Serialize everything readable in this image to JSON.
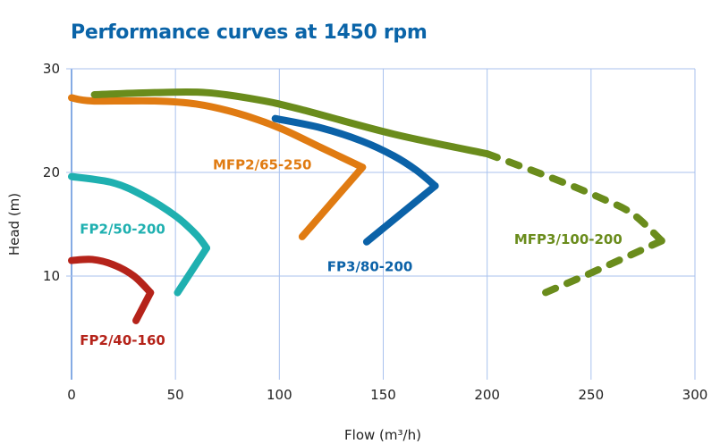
{
  "chart_data": {
    "type": "line",
    "title": "Performance curves at 1450 rpm",
    "xlabel": "Flow (m³/h)",
    "ylabel": "Head (m)",
    "xlim": [
      0,
      300
    ],
    "ylim": [
      0,
      30
    ],
    "xticks": [
      "0",
      "50",
      "100",
      "150",
      "200",
      "250",
      "300"
    ],
    "yticks": [
      "10",
      "20",
      "30"
    ],
    "grid": true,
    "series": [
      {
        "name": "FP2/40-160",
        "color": "#b5231a",
        "label_at": [
          4,
          3.9
        ],
        "segments": [
          {
            "dashed": false,
            "points": [
              [
                0,
                11.5
              ],
              [
                10,
                11.6
              ],
              [
                20,
                11.1
              ],
              [
                30,
                10.0
              ],
              [
                38,
                8.4
              ]
            ]
          },
          {
            "dashed": false,
            "points": [
              [
                38,
                8.4
              ],
              [
                31,
                5.7
              ]
            ]
          }
        ]
      },
      {
        "name": "FP2/50-200",
        "color": "#1fb0b0",
        "label_at": [
          4,
          14.6
        ],
        "segments": [
          {
            "dashed": false,
            "points": [
              [
                0,
                19.6
              ],
              [
                20,
                19.0
              ],
              [
                35,
                17.7
              ],
              [
                50,
                15.8
              ],
              [
                60,
                14.0
              ],
              [
                65,
                12.7
              ]
            ]
          },
          {
            "dashed": false,
            "points": [
              [
                65,
                12.7
              ],
              [
                51,
                8.4
              ]
            ]
          }
        ]
      },
      {
        "name": "MFP2/65-250",
        "color": "#e07b12",
        "label_at": [
          68,
          20.8
        ],
        "segments": [
          {
            "dashed": false,
            "points": [
              [
                0,
                27.2
              ],
              [
                10,
                26.9
              ],
              [
                40,
                26.9
              ],
              [
                60,
                26.6
              ],
              [
                80,
                25.7
              ],
              [
                100,
                24.3
              ],
              [
                120,
                22.4
              ],
              [
                140,
                20.5
              ]
            ]
          },
          {
            "dashed": false,
            "points": [
              [
                140,
                20.5
              ],
              [
                111,
                13.8
              ]
            ]
          }
        ]
      },
      {
        "name": "FP3/80-200",
        "color": "#0b62a8",
        "label_at": [
          123,
          11.0
        ],
        "segments": [
          {
            "dashed": false,
            "points": [
              [
                98,
                25.2
              ],
              [
                120,
                24.3
              ],
              [
                140,
                23.0
              ],
              [
                155,
                21.6
              ],
              [
                166,
                20.2
              ],
              [
                175,
                18.7
              ]
            ]
          },
          {
            "dashed": false,
            "points": [
              [
                175,
                18.7
              ],
              [
                142,
                13.3
              ]
            ]
          }
        ]
      },
      {
        "name": "MFP3/100-200",
        "color": "#6a8c1c",
        "label_at": [
          213,
          13.6
        ],
        "segments": [
          {
            "dashed": false,
            "points": [
              [
                11,
                27.5
              ],
              [
                40,
                27.7
              ],
              [
                65,
                27.7
              ],
              [
                90,
                27.0
              ],
              [
                110,
                26.1
              ],
              [
                155,
                23.7
              ],
              [
                200,
                21.8
              ]
            ]
          },
          {
            "dashed": true,
            "points": [
              [
                200,
                21.8
              ],
              [
                232,
                19.4
              ],
              [
                255,
                17.5
              ],
              [
                270,
                16.0
              ],
              [
                284,
                13.4
              ]
            ]
          },
          {
            "dashed": true,
            "points": [
              [
                284,
                13.4
              ],
              [
                250,
                10.3
              ],
              [
                228,
                8.4
              ]
            ]
          }
        ]
      }
    ]
  }
}
